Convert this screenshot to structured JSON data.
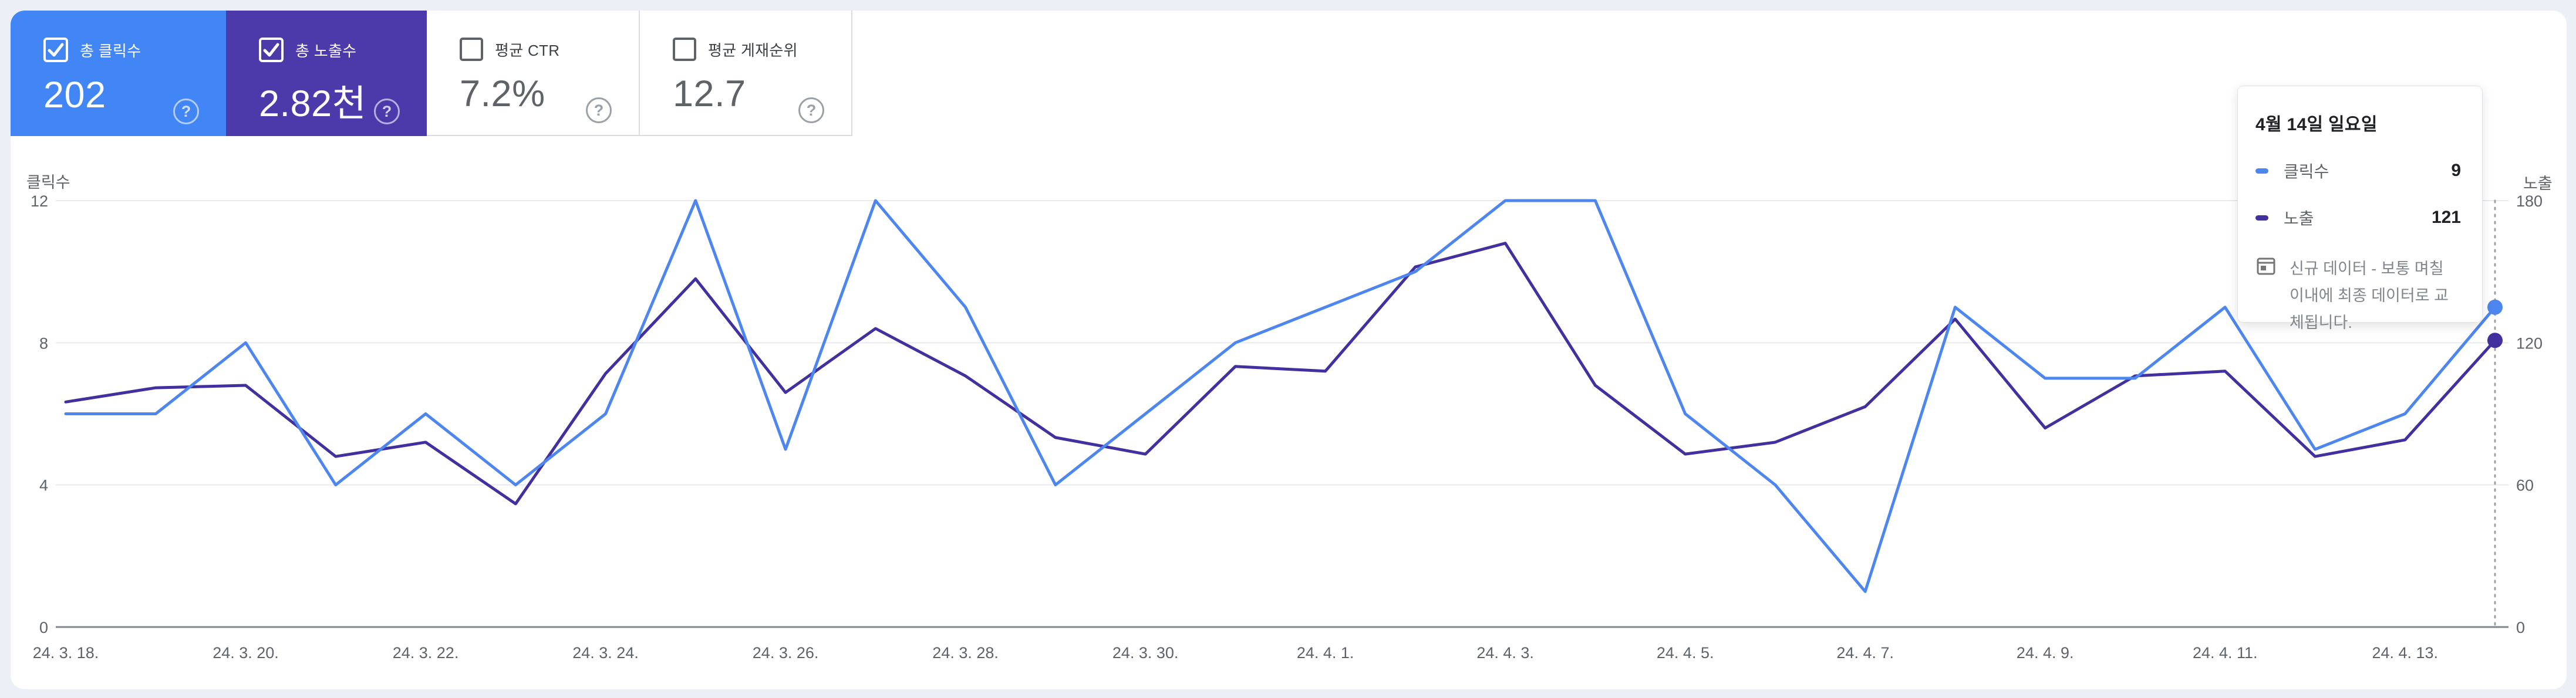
{
  "ui": {
    "help_glyph": "?"
  },
  "metric_cards": [
    {
      "label": "총 클릭수",
      "value": "202",
      "selected": true,
      "color": "#4285f4"
    },
    {
      "label": "총 노출수",
      "value": "2.82천",
      "selected": true,
      "color": "#4c3aab"
    },
    {
      "label": "평균 CTR",
      "value": "7.2%",
      "selected": false,
      "color": ""
    },
    {
      "label": "평균 게재순위",
      "value": "12.7",
      "selected": false,
      "color": ""
    }
  ],
  "tooltip": {
    "title": "4월 14일 일요일",
    "rows": [
      {
        "label": "클릭수",
        "value": "9",
        "color": "#4e86f0"
      },
      {
        "label": "노출",
        "value": "121",
        "color": "#41309e"
      }
    ],
    "note_icon": "calendar-icon",
    "note_lines": [
      "신규 데이터 - 보통 며칠",
      "이내에 최종 데이터로 교",
      "체됩니다."
    ]
  },
  "chart_data": {
    "type": "line",
    "title": "",
    "dates": [
      "24. 3. 18.",
      "24. 3. 19.",
      "24. 3. 20.",
      "24. 3. 21.",
      "24. 3. 22.",
      "24. 3. 23.",
      "24. 3. 24.",
      "24. 3. 25.",
      "24. 3. 26.",
      "24. 3. 27.",
      "24. 3. 28.",
      "24. 3. 29.",
      "24. 3. 30.",
      "24. 3. 31.",
      "24. 4. 1.",
      "24. 4. 2.",
      "24. 4. 3.",
      "24. 4. 4.",
      "24. 4. 5.",
      "24. 4. 6.",
      "24. 4. 7.",
      "24. 4. 8.",
      "24. 4. 9.",
      "24. 4. 10.",
      "24. 4. 11.",
      "24. 4. 12.",
      "24. 4. 13.",
      "24. 4. 14."
    ],
    "x_tick_label_indices": [
      0,
      2,
      4,
      6,
      8,
      10,
      12,
      14,
      16,
      18,
      20,
      22,
      24,
      26
    ],
    "series": [
      {
        "name": "클릭수",
        "axis": "left",
        "color": "#4e86f0",
        "values": [
          6,
          6,
          8,
          4,
          6,
          4,
          6,
          12,
          5,
          12,
          9,
          4,
          6,
          8,
          9,
          10,
          12,
          12,
          6,
          4,
          1,
          9,
          7,
          7,
          9,
          5,
          6,
          9
        ]
      },
      {
        "name": "노출",
        "axis": "right",
        "color": "#41309e",
        "values": [
          95,
          101,
          102,
          72,
          78,
          52,
          107,
          147,
          99,
          126,
          106,
          80,
          73,
          110,
          108,
          152,
          162,
          102,
          73,
          78,
          93,
          130,
          84,
          106,
          108,
          72,
          79,
          121
        ]
      }
    ],
    "left_axis": {
      "title": "클릭수",
      "ticks": [
        0,
        4,
        8,
        12
      ],
      "range": [
        0,
        12
      ]
    },
    "right_axis": {
      "title": "노출",
      "ticks": [
        0,
        60,
        120,
        180
      ],
      "range": [
        0,
        180
      ]
    },
    "grid": "horizontal",
    "legend_position": "none",
    "highlight_index": 27,
    "highlight_date": "24. 4. 14."
  }
}
